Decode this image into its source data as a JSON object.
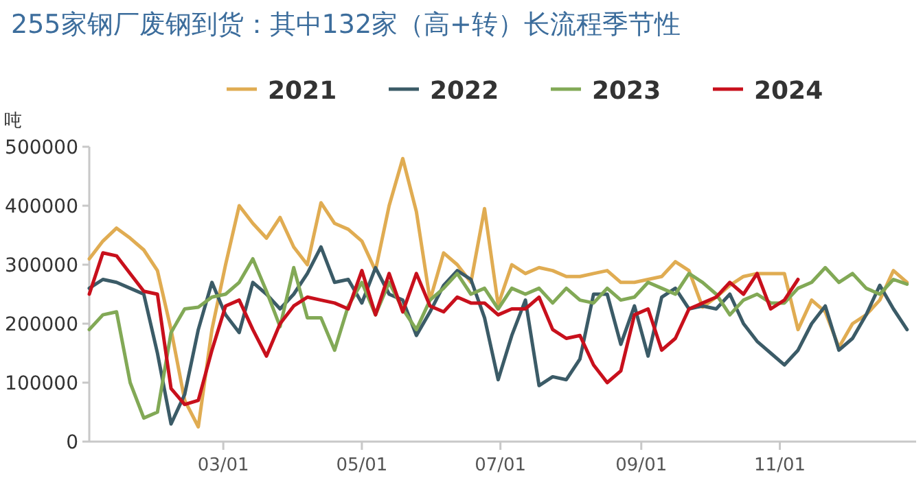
{
  "chart_data": {
    "type": "line",
    "title": "255家钢厂废钢到货：其中132家（高+转）长流程季节性",
    "ylabel": "吨",
    "legend": "top",
    "x": [
      "--01-01",
      "--01-07",
      "--01-13",
      "--01-19",
      "--01-25",
      "--01-31",
      "--02-06",
      "--02-12",
      "--02-18",
      "--02-24",
      "--03-02",
      "--03-08",
      "--03-14",
      "--03-20",
      "--03-26",
      "--04-01",
      "--04-07",
      "--04-13",
      "--04-19",
      "--04-25",
      "--05-01",
      "--05-07",
      "--05-13",
      "--05-19",
      "--05-25",
      "--05-31",
      "--06-06",
      "--06-12",
      "--06-18",
      "--06-24",
      "--06-30",
      "--07-06",
      "--07-12",
      "--07-18",
      "--07-24",
      "--07-30",
      "--08-05",
      "--08-11",
      "--08-17",
      "--08-23",
      "--08-29",
      "--09-04",
      "--09-10",
      "--09-16",
      "--09-22",
      "--09-28",
      "--10-04",
      "--10-10",
      "--10-16",
      "--10-22",
      "--10-28",
      "--11-03",
      "--11-09",
      "--11-15",
      "--11-21",
      "--11-27",
      "--12-03",
      "--12-09",
      "--12-15",
      "--12-21",
      "--12-27"
    ],
    "xlim": [
      "--01-01",
      "--12-31"
    ],
    "xticks": [
      {
        "value": "--03-01",
        "label": "03/01"
      },
      {
        "value": "--05-01",
        "label": "05/01"
      },
      {
        "value": "--07-01",
        "label": "07/01"
      },
      {
        "value": "--09-01",
        "label": "09/01"
      },
      {
        "value": "--11-01",
        "label": "11/01"
      }
    ],
    "ylim": [
      0,
      500000
    ],
    "yticks": [
      0,
      100000,
      200000,
      300000,
      400000,
      500000
    ],
    "series": [
      {
        "name": "2021",
        "color": "#e0ac52",
        "values": [
          310000,
          340000,
          362000,
          345000,
          325000,
          290000,
          190000,
          70000,
          25000,
          190000,
          300000,
          400000,
          370000,
          345000,
          380000,
          330000,
          300000,
          405000,
          370000,
          360000,
          340000,
          290000,
          400000,
          480000,
          390000,
          240000,
          320000,
          300000,
          270000,
          395000,
          232000,
          300000,
          285000,
          295000,
          290000,
          280000,
          280000,
          285000,
          290000,
          270000,
          270000,
          275000,
          280000,
          305000,
          290000,
          228000,
          245000,
          265000,
          280000,
          285000,
          285000,
          285000,
          190000,
          240000,
          220000,
          160000,
          200000,
          215000,
          240000,
          290000,
          270000
        ]
      },
      {
        "name": "2022",
        "color": "#3b5b67",
        "values": [
          260000,
          275000,
          270000,
          260000,
          250000,
          150000,
          30000,
          80000,
          190000,
          270000,
          215000,
          185000,
          270000,
          250000,
          225000,
          250000,
          285000,
          330000,
          270000,
          275000,
          235000,
          295000,
          250000,
          240000,
          180000,
          220000,
          265000,
          290000,
          275000,
          210000,
          105000,
          180000,
          240000,
          95000,
          110000,
          105000,
          140000,
          250000,
          250000,
          165000,
          230000,
          145000,
          245000,
          260000,
          225000,
          230000,
          225000,
          250000,
          200000,
          170000,
          150000,
          130000,
          155000,
          200000,
          230000,
          155000,
          175000,
          215000,
          265000,
          225000,
          190000
        ]
      },
      {
        "name": "2023",
        "color": "#82a956",
        "values": [
          190000,
          215000,
          220000,
          100000,
          40000,
          50000,
          185000,
          225000,
          228000,
          245000,
          250000,
          270000,
          310000,
          255000,
          195000,
          295000,
          210000,
          210000,
          155000,
          230000,
          270000,
          215000,
          270000,
          225000,
          190000,
          240000,
          260000,
          285000,
          250000,
          260000,
          225000,
          260000,
          250000,
          260000,
          235000,
          260000,
          240000,
          235000,
          260000,
          240000,
          245000,
          270000,
          260000,
          250000,
          285000,
          270000,
          250000,
          215000,
          240000,
          250000,
          235000,
          235000,
          260000,
          270000,
          295000,
          270000,
          285000,
          260000,
          250000,
          275000,
          267000
        ]
      },
      {
        "name": "2024",
        "color": "#c8101c",
        "values": [
          250000,
          320000,
          315000,
          285000,
          255000,
          250000,
          90000,
          63000,
          70000,
          155000,
          230000,
          240000,
          190000,
          145000,
          200000,
          230000,
          245000,
          240000,
          235000,
          225000,
          290000,
          215000,
          285000,
          220000,
          285000,
          230000,
          220000,
          245000,
          235000,
          235000,
          215000,
          225000,
          225000,
          245000,
          190000,
          175000,
          180000,
          130000,
          100000,
          120000,
          215000,
          225000,
          155000,
          175000,
          225000,
          235000,
          245000,
          270000,
          250000,
          285000,
          225000,
          240000,
          275000,
          null,
          null,
          null,
          null,
          null,
          null,
          null,
          null
        ]
      }
    ]
  }
}
